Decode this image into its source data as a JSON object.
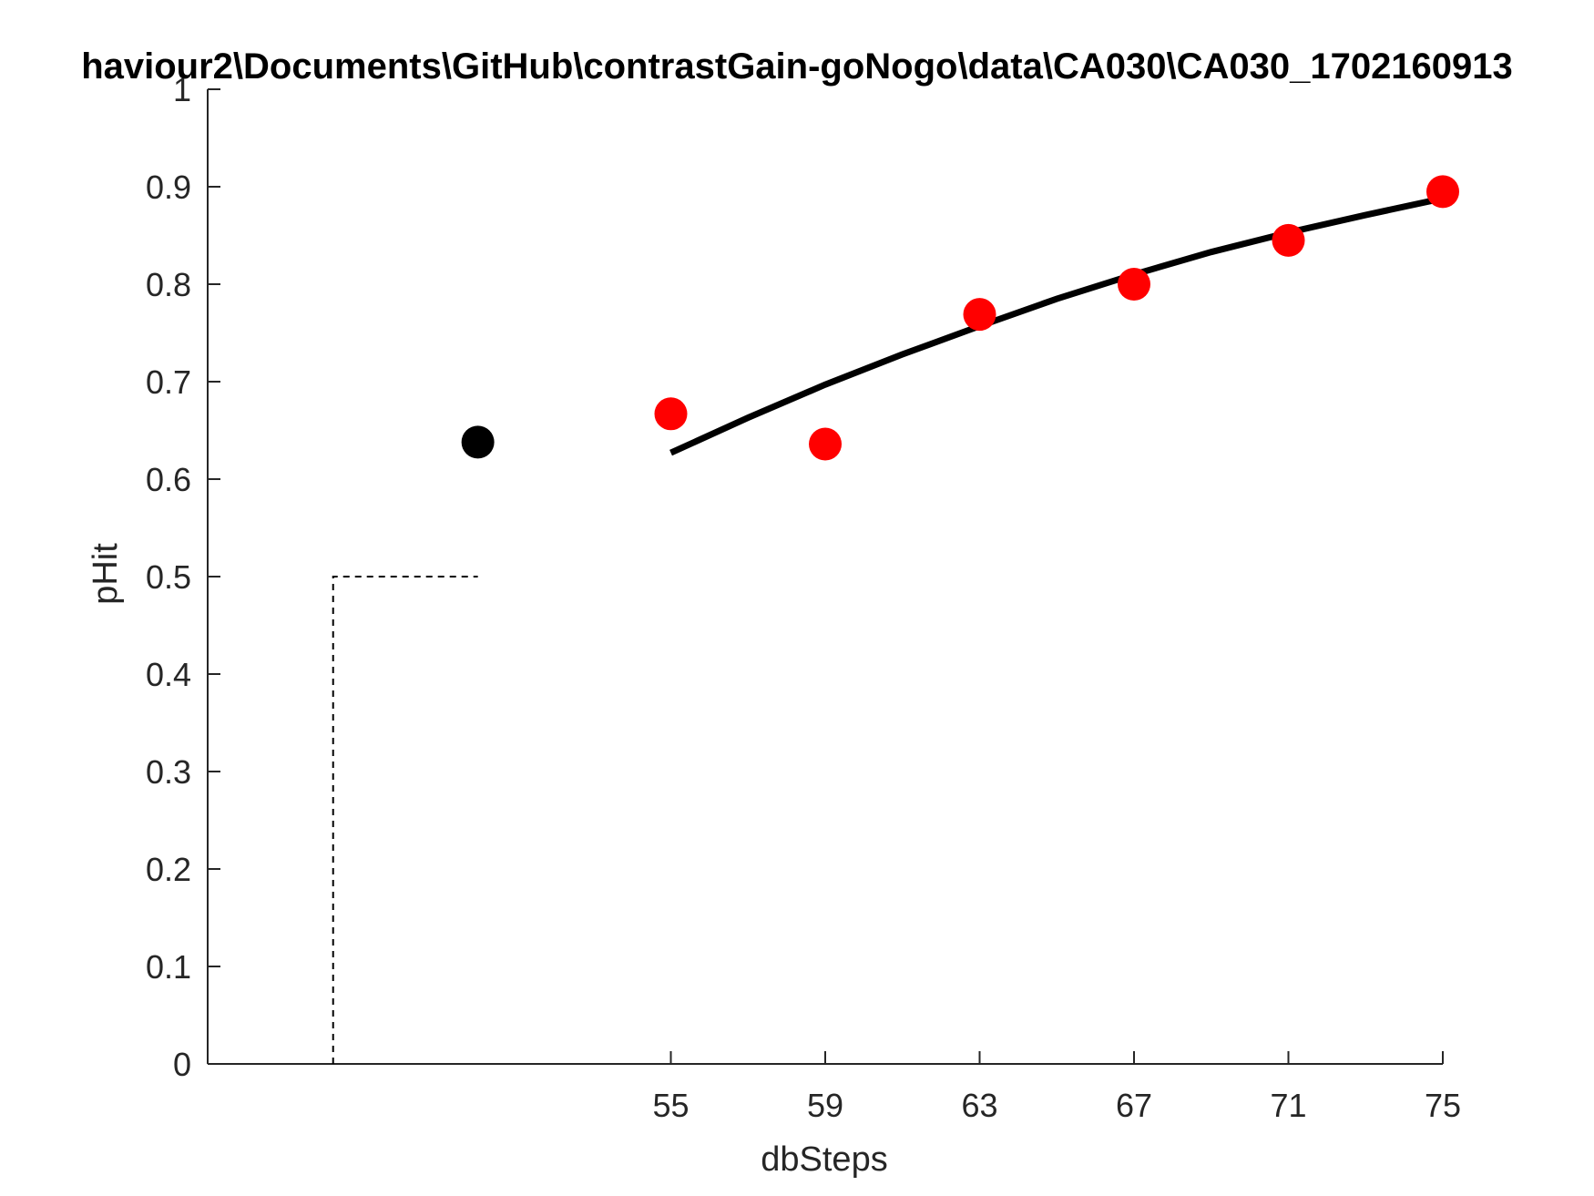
{
  "chart_data": {
    "type": "scatter",
    "title": "haviour2\\Documents\\GitHub\\contrastGain-goNogo\\data\\CA030\\CA030_1702160913",
    "xlabel": "dbSteps",
    "ylabel": "pHit",
    "xlim": [
      43,
      75
    ],
    "ylim": [
      0,
      1
    ],
    "x_ticks": [
      55,
      59,
      63,
      67,
      71,
      75
    ],
    "x_tick_labels": [
      "55",
      "59",
      "63",
      "67",
      "71",
      "75"
    ],
    "y_ticks": [
      0,
      0.1,
      0.2,
      0.3,
      0.4,
      0.5,
      0.6,
      0.7,
      0.8,
      0.9,
      1
    ],
    "y_tick_labels": [
      "0",
      "0.1",
      "0.2",
      "0.3",
      "0.4",
      "0.5",
      "0.6",
      "0.7",
      "0.8",
      "0.9",
      "1"
    ],
    "grid": false,
    "series": [
      {
        "kind": "scatter",
        "color": "#ff0000",
        "x": [
          55,
          59,
          63,
          67,
          71,
          75
        ],
        "y": [
          0.667,
          0.636,
          0.769,
          0.8,
          0.845,
          0.895
        ]
      },
      {
        "kind": "scatter",
        "color": "#000000",
        "x": [
          50
        ],
        "y": [
          0.638
        ]
      },
      {
        "kind": "line",
        "color": "#000000",
        "x": [
          55,
          57,
          59,
          61,
          63,
          65,
          67,
          69,
          71,
          73,
          75
        ],
        "y": [
          0.627,
          0.663,
          0.697,
          0.728,
          0.757,
          0.785,
          0.81,
          0.833,
          0.853,
          0.871,
          0.888
        ]
      },
      {
        "kind": "line",
        "style": "dashed",
        "color": "#000000",
        "x": [
          46.25,
          46.25,
          50
        ],
        "y": [
          0,
          0.5,
          0.5
        ]
      }
    ]
  }
}
